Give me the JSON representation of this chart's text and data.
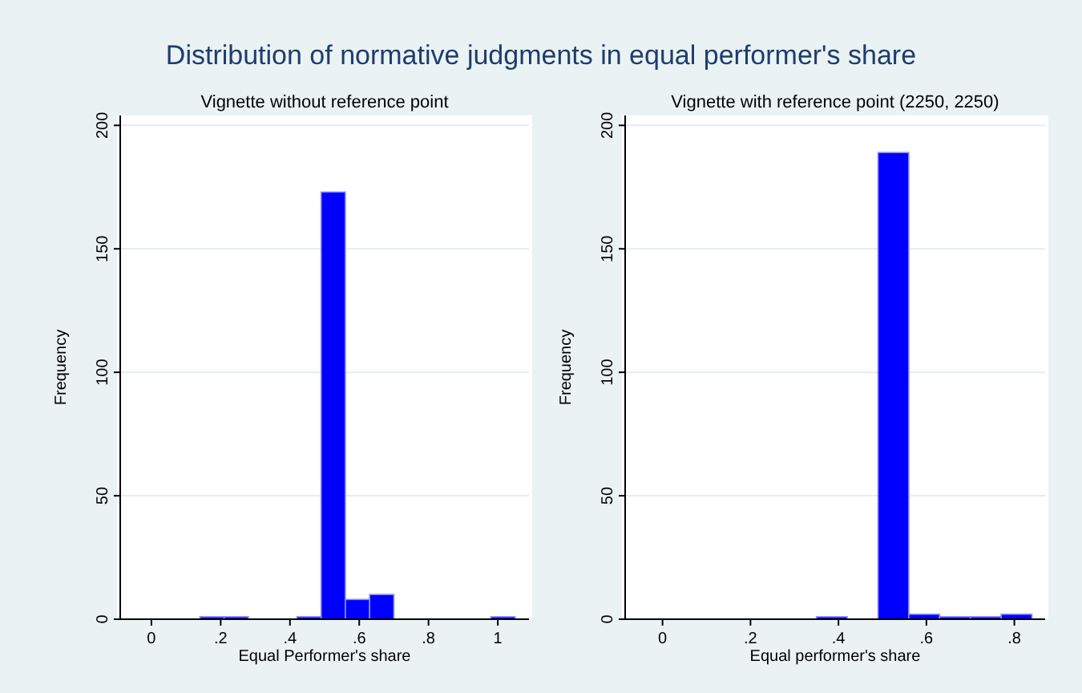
{
  "chart_data": [
    {
      "type": "histogram",
      "title": "Distribution of normative judgments in equal performer's share",
      "subtitle": "Vignette without reference point",
      "xlabel": "Equal Performer's share",
      "ylabel": "Frequency",
      "color": "#0000ff",
      "bins": [
        0.14,
        0.21,
        0.28,
        0.35,
        0.42,
        0.49,
        0.56,
        0.63,
        0.7,
        0.77,
        0.84,
        0.91,
        0.98,
        1.05
      ],
      "values": [
        1,
        1,
        0,
        0,
        1,
        173,
        8,
        10,
        0,
        0,
        0,
        0,
        1
      ],
      "xlim": [
        -0.09,
        1.09
      ],
      "ylim": [
        0,
        204
      ],
      "xticks": [
        {
          "value": 0,
          "label": "0"
        },
        {
          "value": 0.2,
          "label": ".2"
        },
        {
          "value": 0.4,
          "label": ".4"
        },
        {
          "value": 0.6,
          "label": ".6"
        },
        {
          "value": 0.8,
          "label": ".8"
        },
        1
      ],
      "yticks": [
        {
          "value": 0,
          "label": "0"
        },
        50,
        100,
        150,
        200
      ],
      "grid": "y"
    },
    {
      "type": "histogram",
      "subtitle": "Vignette with reference point (2250, 2250)",
      "xlabel": "Equal performer's share",
      "ylabel": "Frequency",
      "color": "#0000ff",
      "bins": [
        0.35,
        0.42,
        0.49,
        0.56,
        0.63,
        0.7,
        0.77,
        0.84
      ],
      "values": [
        1,
        0,
        189,
        2,
        1,
        1,
        2
      ],
      "xlim": [
        -0.085,
        0.87
      ],
      "ylim": [
        0,
        204
      ],
      "xticks": [
        {
          "value": 0,
          "label": "0"
        },
        {
          "value": 0.2,
          "label": ".2"
        },
        {
          "value": 0.4,
          "label": ".4"
        },
        {
          "value": 0.6,
          "label": ".6"
        },
        {
          "value": 0.8,
          "label": ".8"
        }
      ],
      "yticks": [
        {
          "value": 0,
          "label": "0"
        },
        50,
        100,
        150,
        200
      ],
      "grid": "y"
    }
  ]
}
